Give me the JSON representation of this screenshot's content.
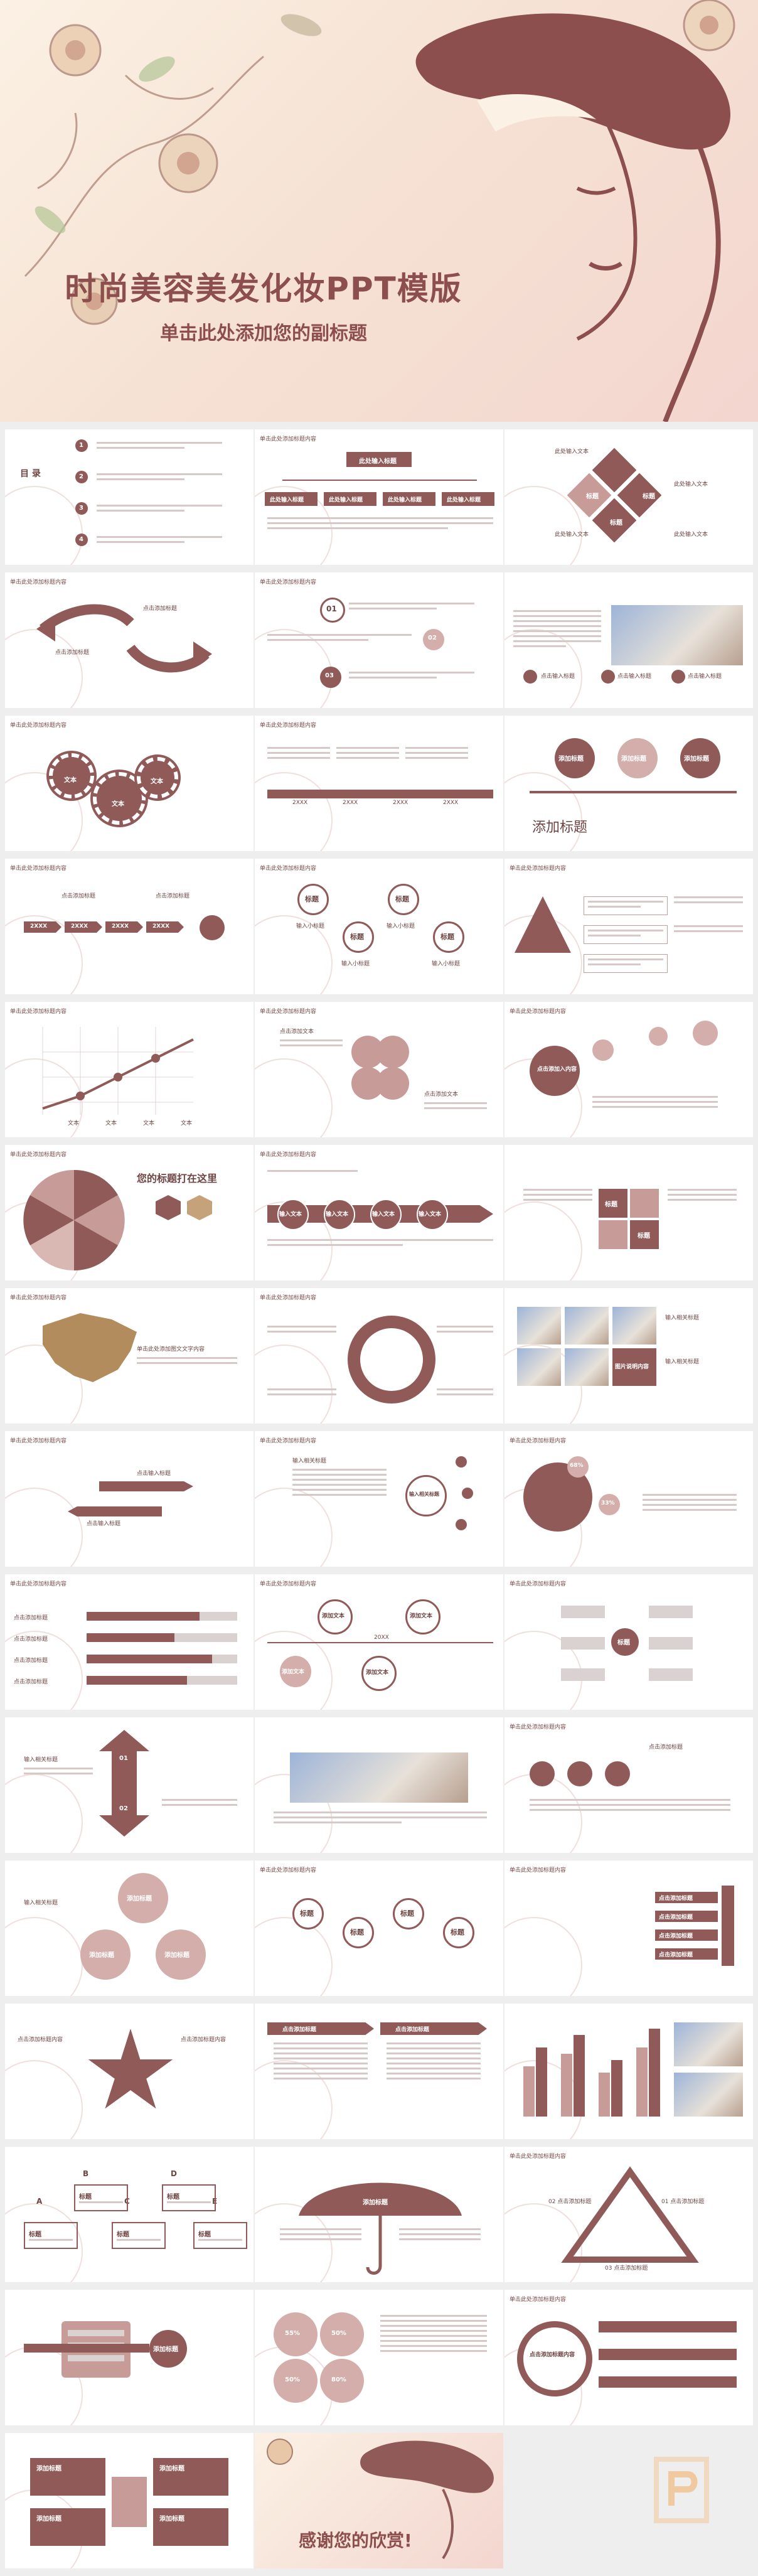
{
  "cover": {
    "title": "时尚美容美发化妆PPT模版",
    "subtitle": "单击此处添加您的副标题"
  },
  "common": {
    "slide_header": "单击此处添加标题内容"
  },
  "slides": {
    "s2": {
      "toc": "目 录",
      "nums": [
        "1",
        "2",
        "3",
        "4"
      ]
    },
    "s3": {
      "top": "此处输入标题",
      "items": [
        "此处输入标题",
        "此处输入标题",
        "此处输入标题",
        "此处输入标题"
      ]
    },
    "s4": {
      "items": [
        "此处输入文本",
        "此处输入文本",
        "此处输入文本",
        "此处输入文本"
      ],
      "tag1": "标题",
      "tag2": "标题",
      "tag3": "标题"
    },
    "s5": {
      "a": "点击添加标题",
      "b": "点击添加标题"
    },
    "s6": {
      "n1": "01",
      "n2": "02",
      "n3": "03"
    },
    "s7": {
      "l1": "点击输入标题",
      "l2": "点击输入标题",
      "l3": "点击输入标题"
    },
    "s8": {
      "g1": "文本",
      "g2": "文本",
      "g3": "文本"
    },
    "s9": {
      "years": [
        "2XXX",
        "2XXX",
        "2XXX",
        "2XXX"
      ]
    },
    "s10": {
      "a": "添加标题",
      "b": "添加标题",
      "c": "添加标题",
      "big": "添加标题"
    },
    "s11": {
      "years": [
        "2XXX",
        "2XXX",
        "2XXX",
        "2XXX"
      ],
      "a": "点击添加标题",
      "b": "点击添加标题"
    },
    "s12": {
      "c1": "标题",
      "c2": "标题",
      "c3": "标题",
      "c4": "标题",
      "t1": "输入小标题",
      "t2": "输入小标题",
      "t3": "输入小标题",
      "t4": "输入小标题"
    },
    "s14": {
      "labels": [
        "文本",
        "文本",
        "文本",
        "文本"
      ]
    },
    "s15": {
      "a": "点击添加文本",
      "b": "点击添加文本"
    },
    "s16": {
      "c": "点击添加入内容"
    },
    "s17": {
      "h": "您的标题打在这里"
    },
    "s18": {
      "a": "输入文本",
      "b": "输入文本",
      "c": "输入文本",
      "d": "输入文本"
    },
    "s19": {
      "t": "标题"
    },
    "s20": {
      "h": "单击此处添加图文文字内容"
    },
    "s22": {
      "a": "输入相关标题",
      "b": "输入相关标题",
      "c": "图片说明内容"
    },
    "s23": {
      "a": "点击输入标题",
      "b": "点击输入标题"
    },
    "s24": {
      "h": "输入相关标题",
      "c": "输入相关标题"
    },
    "s25": {
      "p1": "68%",
      "p2": "33%"
    },
    "s26": {
      "rows": [
        "点击添加标题",
        "点击添加标题",
        "点击添加标题",
        "点击添加标题"
      ]
    },
    "s27": {
      "a": "添加文本",
      "b": "添加文本",
      "c": "添加文本",
      "d": "添加文本",
      "y": "20XX"
    },
    "s28": {
      "c": "标题"
    },
    "s29": {
      "n1": "01",
      "n2": "02",
      "h": "输入相关标题"
    },
    "s31": {
      "h": "点击添加标题"
    },
    "s32": {
      "h": "输入相关标题",
      "a": "添加标题",
      "b": "添加标题",
      "c": "添加标题"
    },
    "s33": {
      "a": "标题",
      "b": "标题",
      "c": "标题",
      "d": "标题"
    },
    "s34": {
      "rows": [
        "点击添加标题",
        "点击添加标题",
        "点击添加标题",
        "点击添加标题"
      ]
    },
    "s35": {
      "a": "点击添加标题内容",
      "b": "点击添加标题内容"
    },
    "s36": {
      "a": "点击添加标题",
      "b": "点击添加标题"
    },
    "s38": {
      "letters": [
        "B",
        "D",
        "A",
        "C",
        "E"
      ],
      "labels": [
        "标题",
        "标题",
        "标题",
        "标题",
        "标题"
      ]
    },
    "s39": {
      "u": "添加标题"
    },
    "s40": {
      "a": "01 点击添加标题",
      "b": "02 点击添加标题",
      "c": "03 点击添加标题"
    },
    "s41": {
      "c": "添加标题"
    },
    "s42": {
      "p": [
        "55%",
        "50%",
        "50%",
        "80%"
      ]
    },
    "s43": {
      "c": "点击添加标题内容"
    },
    "s44": {
      "a": "添加标题",
      "b": "添加标题",
      "c": "添加标题",
      "d": "添加标题"
    },
    "s45": {
      "t": "感谢您的欣赏!"
    }
  },
  "colors": {
    "accent": "#8f5a57",
    "light_accent": "#d4aeaa",
    "bg": "#eeeeee"
  },
  "icons": [
    "flower-ornament-icon",
    "lady-hat-illustration",
    "gear-icon",
    "heart-icon",
    "umbrella-icon",
    "star-icon",
    "p-logo-icon"
  ]
}
